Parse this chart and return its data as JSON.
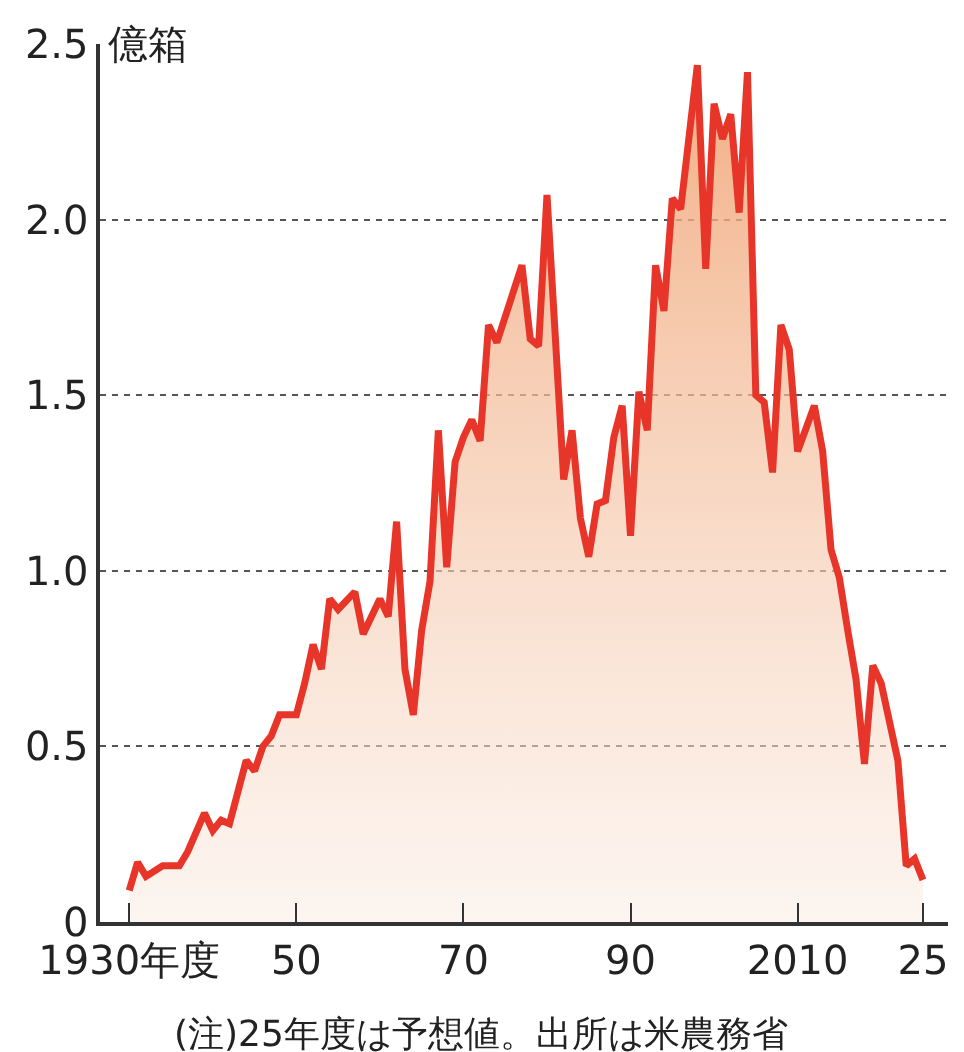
{
  "chart_data": {
    "type": "area",
    "ylabel": "億箱",
    "x": [
      1930,
      1931,
      1932,
      1934,
      1936,
      1937,
      1939,
      1940,
      1941,
      1942,
      1944,
      1945,
      1946,
      1947,
      1948,
      1950,
      1951,
      1952,
      1953,
      1954,
      1955,
      1957,
      1958,
      1960,
      1961,
      1962,
      1963,
      1964,
      1965,
      1966,
      1967,
      1968,
      1969,
      1970,
      1971,
      1972,
      1973,
      1974,
      1977,
      1978,
      1979,
      1980,
      1982,
      1983,
      1984,
      1985,
      1986,
      1987,
      1988,
      1989,
      1990,
      1991,
      1992,
      1993,
      1994,
      1995,
      1996,
      1998,
      1999,
      2000,
      2001,
      2002,
      2003,
      2004,
      2005,
      2006,
      2007,
      2008,
      2009,
      2010,
      2012,
      2013,
      2014,
      2015,
      2016,
      2017,
      2018,
      2019,
      2020,
      2022,
      2023,
      2024,
      2025
    ],
    "series": [
      {
        "color": "#e8352a",
        "values": [
          0.09,
          0.17,
          0.13,
          0.16,
          0.16,
          0.2,
          0.31,
          0.26,
          0.29,
          0.28,
          0.46,
          0.43,
          0.5,
          0.53,
          0.59,
          0.59,
          0.68,
          0.79,
          0.72,
          0.92,
          0.89,
          0.94,
          0.82,
          0.92,
          0.87,
          1.14,
          0.72,
          0.59,
          0.83,
          0.97,
          1.4,
          1.01,
          1.31,
          1.38,
          1.43,
          1.37,
          1.7,
          1.65,
          1.87,
          1.66,
          1.64,
          2.07,
          1.26,
          1.4,
          1.15,
          1.04,
          1.19,
          1.2,
          1.38,
          1.47,
          1.1,
          1.51,
          1.4,
          1.87,
          1.74,
          2.06,
          2.03,
          2.44,
          1.86,
          2.33,
          2.23,
          2.3,
          2.02,
          2.42,
          1.5,
          1.48,
          1.28,
          1.7,
          1.63,
          1.34,
          1.47,
          1.34,
          1.06,
          0.98,
          0.83,
          0.69,
          0.45,
          0.73,
          0.68,
          0.46,
          0.16,
          0.18,
          0.12
        ]
      }
    ],
    "xlim": [
      1926.5,
      2028
    ],
    "xticks": [
      {
        "value": 1930,
        "label": "1930年度"
      },
      {
        "value": 1950,
        "label": "50"
      },
      {
        "value": 1970,
        "label": "70"
      },
      {
        "value": 1990,
        "label": "90"
      },
      2010,
      {
        "value": 2025,
        "label": "25"
      }
    ],
    "ylim": [
      0,
      2.5
    ],
    "yticks": [
      0,
      0.5,
      {
        "value": 1,
        "label": "1.0"
      },
      1.5,
      {
        "value": 2,
        "label": "2.0"
      },
      2.5
    ],
    "grid": "y",
    "annotations": [
      "(注)25年度は予想値。出所は米農務省"
    ]
  }
}
